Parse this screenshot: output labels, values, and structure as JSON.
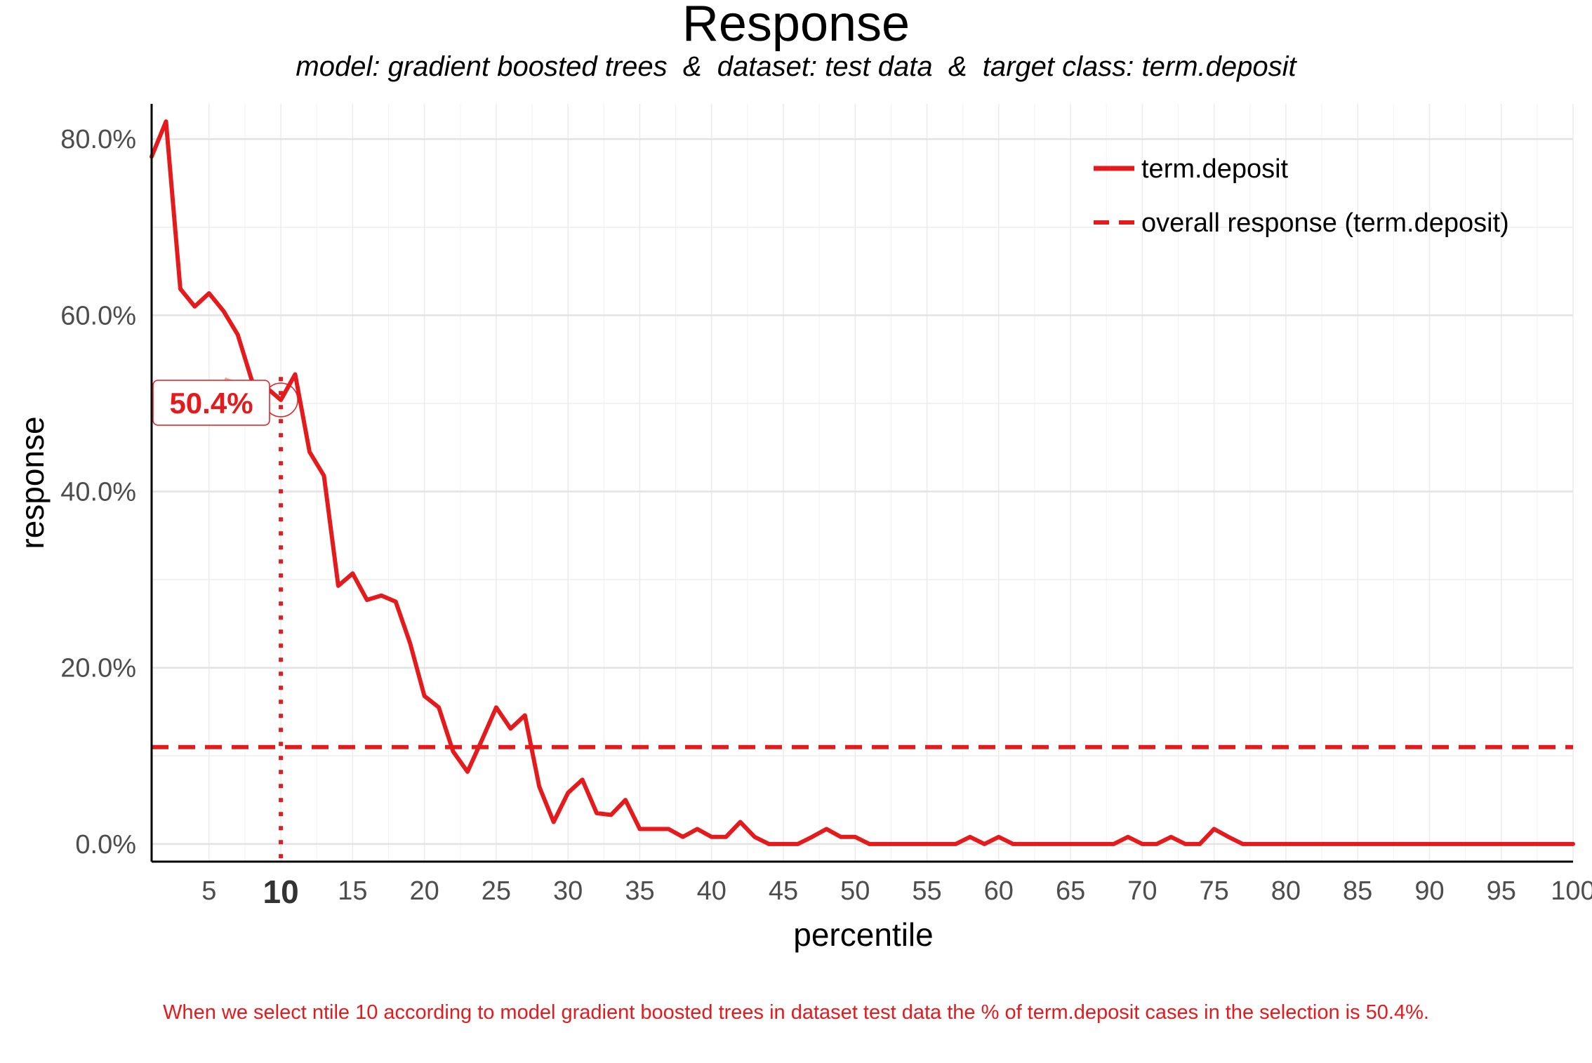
{
  "chart_data": {
    "type": "line",
    "title": "Response",
    "subtitle": "model: gradient boosted trees  &  dataset: test data  &  target class: term.deposit",
    "xlabel": "percentile",
    "ylabel": "response",
    "xlim": [
      1,
      100
    ],
    "ylim": [
      -0.02,
      0.84
    ],
    "x_ticks": [
      5,
      10,
      15,
      20,
      25,
      30,
      35,
      40,
      45,
      50,
      55,
      60,
      65,
      70,
      75,
      80,
      85,
      90,
      95,
      100
    ],
    "x_tick_labels": [
      "5",
      "10",
      "15",
      "20",
      "25",
      "30",
      "35",
      "40",
      "45",
      "50",
      "55",
      "60",
      "65",
      "70",
      "75",
      "80",
      "85",
      "90",
      "95",
      "100"
    ],
    "highlight_tick": "10",
    "y_ticks": [
      0,
      0.2,
      0.4,
      0.6,
      0.8
    ],
    "y_tick_labels": [
      "0.0%",
      "20.0%",
      "40.0%",
      "60.0%",
      "80.0%"
    ],
    "grid": true,
    "legend_position": "top-right",
    "series": [
      {
        "name": "term.deposit",
        "style": "solid",
        "color": "#E41A1C",
        "x": [
          1,
          2,
          3,
          4,
          5,
          6,
          7,
          8,
          9,
          10,
          11,
          12,
          13,
          14,
          15,
          16,
          17,
          18,
          19,
          20,
          21,
          22,
          23,
          24,
          25,
          26,
          27,
          28,
          29,
          30,
          31,
          32,
          33,
          34,
          35,
          36,
          37,
          38,
          39,
          40,
          41,
          42,
          43,
          44,
          45,
          46,
          47,
          48,
          49,
          50,
          51,
          52,
          53,
          54,
          55,
          56,
          57,
          58,
          59,
          60,
          61,
          62,
          63,
          64,
          65,
          66,
          67,
          68,
          69,
          70,
          71,
          72,
          73,
          74,
          75,
          76,
          77,
          78,
          79,
          80,
          81,
          82,
          83,
          84,
          85,
          86,
          87,
          88,
          89,
          90,
          91,
          92,
          93,
          94,
          95,
          96,
          97,
          98,
          99,
          100
        ],
        "values": [
          0.78,
          0.82,
          0.63,
          0.61,
          0.625,
          0.605,
          0.578,
          0.525,
          0.518,
          0.504,
          0.533,
          0.445,
          0.418,
          0.293,
          0.307,
          0.277,
          0.282,
          0.275,
          0.228,
          0.168,
          0.155,
          0.105,
          0.082,
          0.118,
          0.155,
          0.131,
          0.146,
          0.065,
          0.025,
          0.058,
          0.073,
          0.035,
          0.033,
          0.05,
          0.017,
          0.017,
          0.017,
          0.008,
          0.017,
          0.008,
          0.008,
          0.025,
          0.008,
          0.0,
          0.0,
          0.0,
          0.008,
          0.017,
          0.008,
          0.008,
          0.0,
          0.0,
          0.0,
          0.0,
          0.0,
          0.0,
          0.0,
          0.008,
          0.0,
          0.008,
          0.0,
          0.0,
          0.0,
          0.0,
          0.0,
          0.0,
          0.0,
          0.0,
          0.008,
          0.0,
          0.0,
          0.008,
          0.0,
          0.0,
          0.017,
          0.008,
          0.0,
          0.0,
          0.0,
          0.0,
          0.0,
          0.0,
          0.0,
          0.0,
          0.0,
          0.0,
          0.0,
          0.0,
          0.0,
          0.0,
          0.0,
          0.0,
          0.0,
          0.0,
          0.0,
          0.0,
          0.0,
          0.0,
          0.0,
          0.0
        ]
      },
      {
        "name": "overall response (term.deposit)",
        "style": "dashed",
        "color": "#E41A1C",
        "value": 0.11
      }
    ],
    "annotation": {
      "x": 10,
      "y": 0.504,
      "label": "50.4%"
    },
    "caption": "When we select ntile 10 according to model gradient boosted trees in dataset test data the % of term.deposit cases in the selection is 50.4%."
  }
}
